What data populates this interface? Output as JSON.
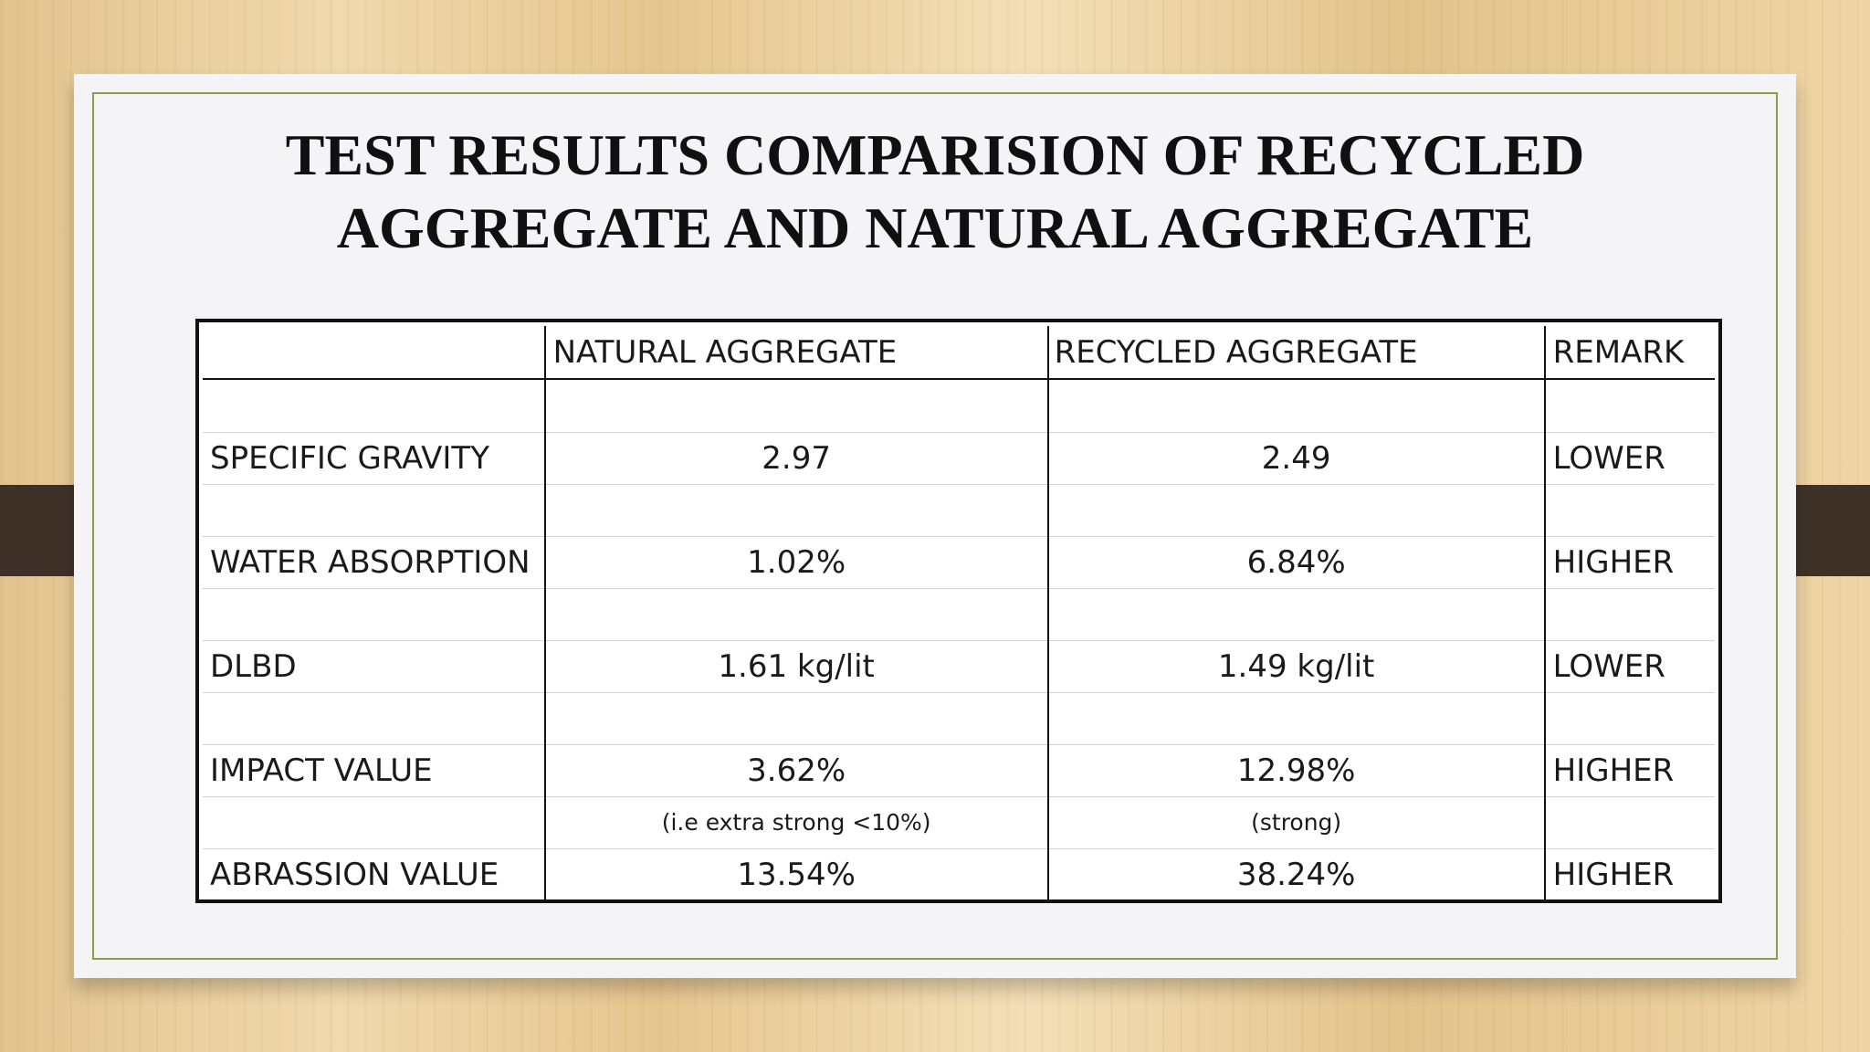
{
  "slide": {
    "title_line1": "TEST RESULTS COMPARISION OF RECYCLED",
    "title_line2": "AGGREGATE AND NATURAL AGGREGATE"
  },
  "table": {
    "headers": [
      "",
      "NATURAL AGGREGATE",
      "RECYCLED AGGREGATE",
      "REMARK"
    ],
    "rows": [
      {
        "property": "SPECIFIC GRAVITY",
        "natural": "2.97",
        "recycled": "2.49",
        "remark": "LOWER"
      },
      {
        "property": "WATER ABSORPTION",
        "natural": "1.02%",
        "recycled": "6.84%",
        "remark": "HIGHER"
      },
      {
        "property": "DLBD",
        "natural": "1.61 kg/lit",
        "recycled": "1.49 kg/lit",
        "remark": "LOWER"
      },
      {
        "property": "IMPACT VALUE",
        "natural": "3.62%",
        "recycled": "12.98%",
        "remark": "HIGHER",
        "natural_note": "(i.e extra strong <10%)",
        "recycled_note": "(strong)"
      },
      {
        "property": "ABRASSION VALUE",
        "natural": "13.54%",
        "recycled": "38.24%",
        "remark": "HIGHER"
      }
    ]
  }
}
